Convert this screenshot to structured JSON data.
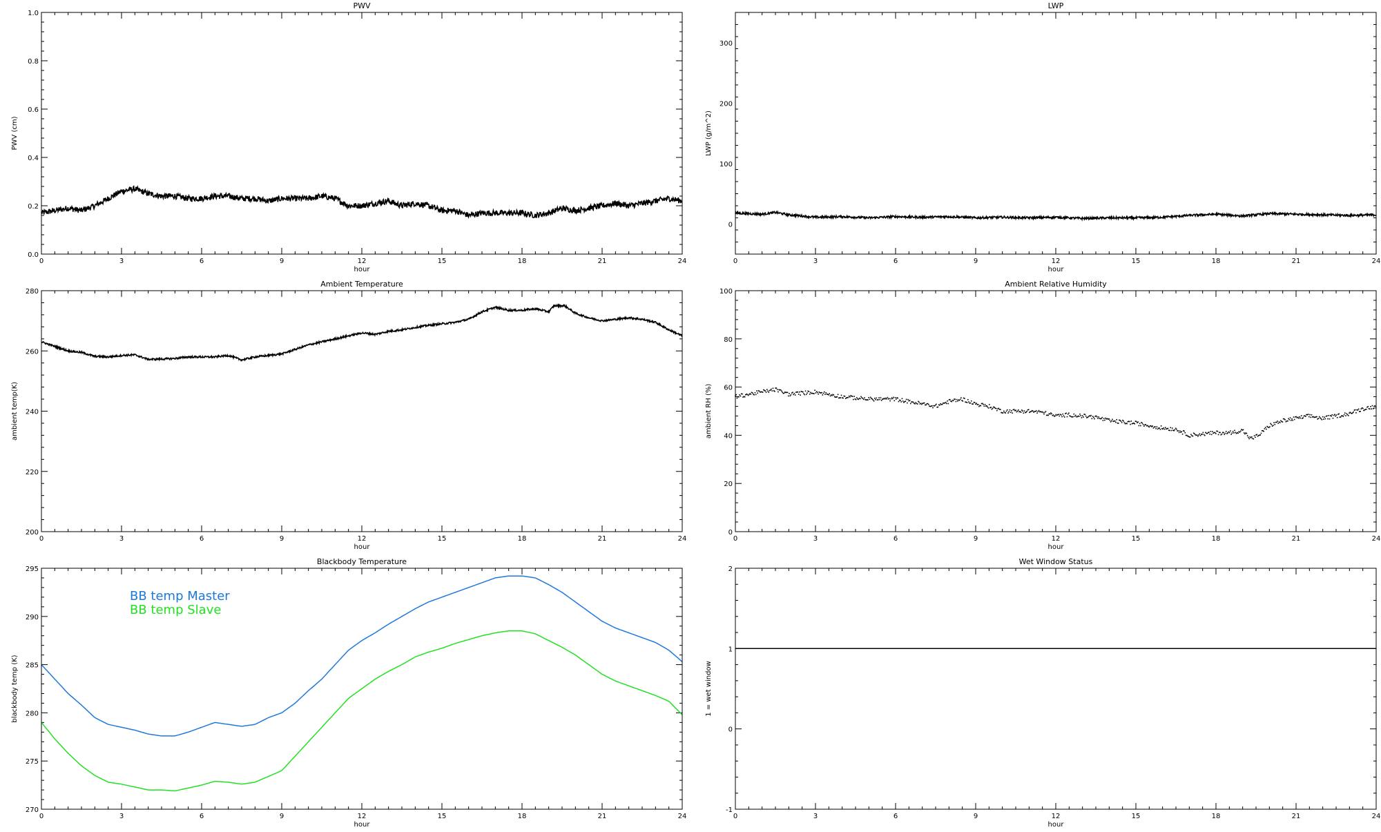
{
  "chart_data": [
    {
      "id": "pwv",
      "type": "line",
      "title": "PWV",
      "xlabel": "hour",
      "ylabel": "PWV (cm)",
      "xlim": [
        0,
        24
      ],
      "ylim": [
        0,
        1.0
      ],
      "xticks": [
        0,
        3,
        6,
        9,
        12,
        15,
        18,
        21,
        24
      ],
      "yticks": [
        0.0,
        0.2,
        0.4,
        0.6,
        0.8,
        1.0
      ],
      "ytick_labels": [
        "0.0",
        "0.2",
        "0.4",
        "0.6",
        "0.8",
        "1.0"
      ],
      "series": [
        {
          "color": "#000000",
          "noise": 0.012,
          "x": [
            0,
            0.5,
            1,
            1.5,
            2,
            2.5,
            3,
            3.5,
            4,
            4.5,
            5,
            5.5,
            6,
            6.5,
            7,
            7.5,
            8,
            8.5,
            9,
            9.5,
            10,
            10.5,
            11,
            11.5,
            12,
            12.5,
            13,
            13.5,
            14,
            14.5,
            15,
            15.5,
            16,
            16.5,
            17,
            17.5,
            18,
            18.5,
            19,
            19.5,
            20,
            20.5,
            21,
            21.5,
            22,
            22.5,
            23,
            23.5,
            24
          ],
          "values": [
            0.17,
            0.18,
            0.19,
            0.18,
            0.2,
            0.23,
            0.26,
            0.27,
            0.25,
            0.24,
            0.24,
            0.23,
            0.23,
            0.24,
            0.24,
            0.23,
            0.23,
            0.22,
            0.23,
            0.23,
            0.23,
            0.24,
            0.23,
            0.2,
            0.2,
            0.21,
            0.22,
            0.2,
            0.21,
            0.2,
            0.18,
            0.18,
            0.16,
            0.17,
            0.17,
            0.17,
            0.17,
            0.16,
            0.17,
            0.19,
            0.18,
            0.19,
            0.2,
            0.21,
            0.2,
            0.21,
            0.22,
            0.23,
            0.22
          ]
        }
      ]
    },
    {
      "id": "lwp",
      "type": "line",
      "title": "LWP",
      "xlabel": "hour",
      "ylabel": "LWP (g/m^2)",
      "xlim": [
        0,
        24
      ],
      "ylim": [
        -50,
        350
      ],
      "xticks": [
        0,
        3,
        6,
        9,
        12,
        15,
        18,
        21,
        24
      ],
      "yticks": [
        0,
        100,
        200,
        300
      ],
      "ytick_labels": [
        "0",
        "100",
        "200",
        "300"
      ],
      "series": [
        {
          "color": "#000000",
          "noise": 1.8,
          "x": [
            0,
            1,
            1.5,
            2,
            3,
            4,
            5,
            6,
            7,
            8,
            9,
            10,
            11,
            12,
            13,
            14,
            15,
            16,
            17,
            18,
            19,
            20,
            21,
            22,
            23,
            24
          ],
          "values": [
            18,
            16,
            19,
            15,
            11,
            12,
            10,
            12,
            11,
            12,
            10,
            11,
            10,
            11,
            9,
            10,
            10,
            11,
            14,
            16,
            13,
            17,
            16,
            15,
            14,
            15
          ]
        }
      ]
    },
    {
      "id": "ambient-temperature",
      "type": "line",
      "title": "Ambient Temperature",
      "xlabel": "hour",
      "ylabel": "ambient temp(K)",
      "xlim": [
        0,
        24
      ],
      "ylim": [
        200,
        280
      ],
      "xticks": [
        0,
        3,
        6,
        9,
        12,
        15,
        18,
        21,
        24
      ],
      "yticks": [
        200,
        220,
        240,
        260,
        280
      ],
      "ytick_labels": [
        "200",
        "220",
        "240",
        "260",
        "280"
      ],
      "series": [
        {
          "color": "#000000",
          "noise": 0.3,
          "x": [
            0,
            0.5,
            1,
            1.5,
            2,
            2.5,
            3,
            3.5,
            4,
            4.5,
            5,
            5.5,
            6,
            6.5,
            7,
            7.5,
            8,
            8.5,
            9,
            9.5,
            10,
            10.5,
            11,
            11.5,
            12,
            12.5,
            13,
            13.5,
            14,
            14.5,
            15,
            15.5,
            16,
            16.5,
            17,
            17.5,
            18,
            18.5,
            19,
            19.2,
            19.6,
            20,
            20.5,
            21,
            21.5,
            22,
            22.5,
            23,
            23.5,
            24
          ],
          "values": [
            263,
            261.5,
            260,
            259.5,
            258.2,
            258,
            258.5,
            258.7,
            257.2,
            257.3,
            257.5,
            258,
            258,
            258,
            258.5,
            257,
            258,
            258.5,
            259,
            260.5,
            262,
            263,
            264,
            265,
            266,
            265.5,
            266.5,
            267,
            267.8,
            268.5,
            269,
            269.5,
            270.5,
            273,
            274.5,
            273.5,
            273.5,
            274,
            273,
            275,
            275,
            272.5,
            271,
            270,
            270.5,
            271,
            270.5,
            269.5,
            267,
            265
          ]
        }
      ]
    },
    {
      "id": "ambient-relative-humidity",
      "type": "scatter",
      "title": "Ambient Relative Humidity",
      "xlabel": "hour",
      "ylabel": "ambient RH (%)",
      "xlim": [
        0,
        24
      ],
      "ylim": [
        0,
        100
      ],
      "xticks": [
        0,
        3,
        6,
        9,
        12,
        15,
        18,
        21,
        24
      ],
      "yticks": [
        0,
        20,
        40,
        60,
        80,
        100
      ],
      "ytick_labels": [
        "0",
        "20",
        "40",
        "60",
        "80",
        "100"
      ],
      "series": [
        {
          "color": "#000000",
          "noise": 0.8,
          "x": [
            0,
            0.5,
            1,
            1.5,
            2,
            2.5,
            3,
            3.5,
            4,
            4.5,
            5,
            5.5,
            6,
            6.5,
            7,
            7.5,
            8,
            8.5,
            9,
            9.5,
            10,
            10.5,
            11,
            11.5,
            12,
            12.5,
            13,
            13.5,
            14,
            14.5,
            15,
            15.5,
            16,
            16.5,
            17,
            17.5,
            18,
            18.5,
            19,
            19.3,
            19.6,
            20,
            20.5,
            21,
            21.5,
            22,
            22.5,
            23,
            23.5,
            24
          ],
          "values": [
            56,
            57,
            58,
            59,
            57,
            57.5,
            58,
            57,
            56,
            55.5,
            55,
            55,
            55,
            54,
            53,
            52,
            54,
            55,
            53,
            52,
            50,
            50,
            50,
            49.5,
            48,
            48.5,
            48,
            47.5,
            46,
            45.5,
            45,
            44,
            43,
            42.5,
            40,
            40.5,
            41,
            41,
            42,
            38.5,
            40,
            44,
            46,
            47,
            48,
            47,
            48,
            49,
            51,
            52
          ]
        }
      ]
    },
    {
      "id": "blackbody-temperature",
      "type": "line",
      "title": "Blackbody Temperature",
      "xlabel": "hour",
      "ylabel": "blackbody temp (K)",
      "xlim": [
        0,
        24
      ],
      "ylim": [
        270,
        295
      ],
      "xticks": [
        0,
        3,
        6,
        9,
        12,
        15,
        18,
        21,
        24
      ],
      "yticks": [
        270,
        275,
        280,
        285,
        290,
        295
      ],
      "ytick_labels": [
        "270",
        "275",
        "280",
        "285",
        "290",
        "295"
      ],
      "legend_position": "top-left",
      "series": [
        {
          "name": "BB temp Master",
          "color": "#1E78DC",
          "noise": 0,
          "x": [
            0,
            0.5,
            1,
            1.5,
            2,
            2.5,
            3,
            3.5,
            4,
            4.5,
            5,
            5.5,
            6,
            6.5,
            7,
            7.5,
            8,
            8.5,
            9,
            9.5,
            10,
            10.5,
            11,
            11.5,
            12,
            12.5,
            13,
            13.5,
            14,
            14.5,
            15,
            15.5,
            16,
            16.5,
            17,
            17.5,
            18,
            18.5,
            19,
            19.5,
            20,
            20.5,
            21,
            21.5,
            22,
            22.5,
            23,
            23.5,
            24
          ],
          "values": [
            285,
            283.5,
            282,
            280.8,
            279.5,
            278.8,
            278.5,
            278.2,
            277.8,
            277.6,
            277.6,
            278,
            278.5,
            279,
            278.8,
            278.6,
            278.8,
            279.5,
            280,
            281,
            282.3,
            283.5,
            285,
            286.5,
            287.5,
            288.3,
            289.2,
            290,
            290.8,
            291.5,
            292,
            292.5,
            293,
            293.5,
            294,
            294.2,
            294.2,
            294,
            293.3,
            292.5,
            291.5,
            290.5,
            289.5,
            288.8,
            288.3,
            287.8,
            287.3,
            286.5,
            285.3
          ]
        },
        {
          "name": "BB temp Slave",
          "color": "#22E022",
          "noise": 0,
          "x": [
            0,
            0.5,
            1,
            1.5,
            2,
            2.5,
            3,
            3.5,
            4,
            4.5,
            5,
            5.5,
            6,
            6.5,
            7,
            7.5,
            8,
            8.5,
            9,
            9.5,
            10,
            10.5,
            11,
            11.5,
            12,
            12.5,
            13,
            13.5,
            14,
            14.5,
            15,
            15.5,
            16,
            16.5,
            17,
            17.5,
            18,
            18.5,
            19,
            19.5,
            20,
            20.5,
            21,
            21.5,
            22,
            22.5,
            23,
            23.5,
            24
          ],
          "values": [
            279,
            277.3,
            275.8,
            274.5,
            273.5,
            272.8,
            272.6,
            272.3,
            272,
            272,
            271.9,
            272.2,
            272.5,
            272.9,
            272.8,
            272.6,
            272.8,
            273.4,
            274,
            275.5,
            277,
            278.5,
            280,
            281.5,
            282.5,
            283.5,
            284.3,
            285,
            285.8,
            286.3,
            286.7,
            287.2,
            287.6,
            288,
            288.3,
            288.5,
            288.5,
            288.2,
            287.5,
            286.8,
            286,
            285,
            284,
            283.3,
            282.8,
            282.3,
            281.8,
            281.2,
            279.8
          ]
        }
      ]
    },
    {
      "id": "wet-window-status",
      "type": "line",
      "title": "Wet Window Status",
      "xlabel": "hour",
      "ylabel": "1 = wet window",
      "xlim": [
        0,
        24
      ],
      "ylim": [
        -1,
        2
      ],
      "xticks": [
        0,
        3,
        6,
        9,
        12,
        15,
        18,
        21,
        24
      ],
      "yticks": [
        -1,
        0,
        1,
        2
      ],
      "ytick_labels": [
        "-1",
        "0",
        "1",
        "2"
      ],
      "series": [
        {
          "color": "#000000",
          "noise": 0,
          "x": [
            0,
            24
          ],
          "values": [
            1,
            1
          ]
        }
      ]
    }
  ]
}
